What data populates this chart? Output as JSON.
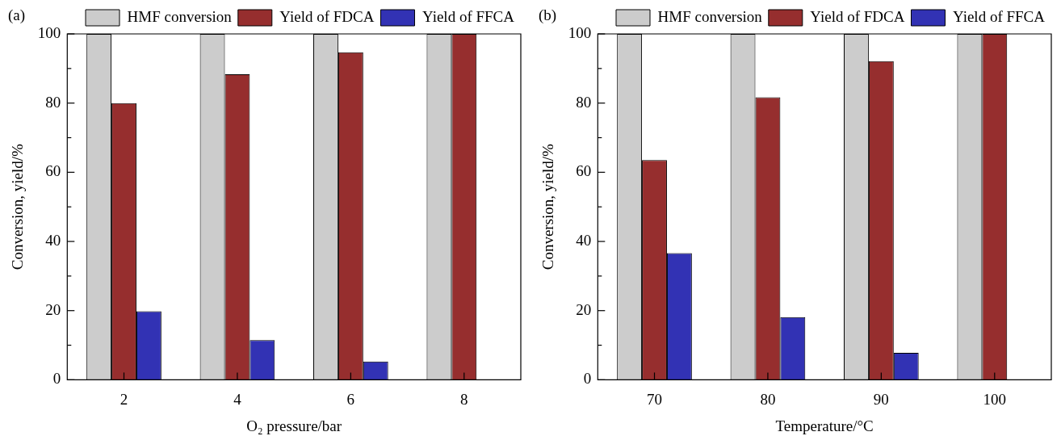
{
  "chart_data": [
    {
      "type": "bar",
      "title": "(a)",
      "xlabel": "O₂ pressure/bar",
      "ylabel": "Conversion, yield/%",
      "categories": [
        "2",
        "4",
        "6",
        "8"
      ],
      "series": [
        {
          "name": "HMF conversion",
          "color": "#cccccc",
          "values": [
            100,
            100,
            100,
            100
          ]
        },
        {
          "name": "Yield of FDCA",
          "color": "#962e2e",
          "values": [
            80,
            88.3,
            94.7,
            100
          ]
        },
        {
          "name": "Yield of FFCA",
          "color": "#3232b4",
          "values": [
            19.8,
            11.5,
            5.3,
            0
          ]
        }
      ],
      "ylim": [
        0,
        100
      ],
      "yticks": [
        0,
        {
          "value": 10,
          "label": null
        },
        20,
        {
          "value": 30,
          "label": null
        },
        40,
        {
          "value": 50,
          "label": null
        },
        60,
        {
          "value": 70,
          "label": null
        },
        80,
        {
          "value": 90,
          "label": null
        },
        100
      ],
      "legend": "top"
    },
    {
      "type": "bar",
      "title": "(b)",
      "xlabel": "Temperature/°C",
      "ylabel": "Conversion, yield/%",
      "categories": [
        "70",
        "80",
        "90",
        "100"
      ],
      "series": [
        {
          "name": "HMF conversion",
          "color": "#cccccc",
          "values": [
            100,
            100,
            100,
            100
          ]
        },
        {
          "name": "Yield of FDCA",
          "color": "#962e2e",
          "values": [
            63.5,
            81.7,
            92.1,
            100
          ]
        },
        {
          "name": "Yield of FFCA",
          "color": "#3232b4",
          "values": [
            36.6,
            18.1,
            7.8,
            0
          ]
        }
      ],
      "ylim": [
        0,
        100
      ],
      "yticks": [
        0,
        {
          "value": 10,
          "label": null
        },
        20,
        {
          "value": 30,
          "label": null
        },
        40,
        {
          "value": 50,
          "label": null
        },
        60,
        {
          "value": 70,
          "label": null
        },
        80,
        {
          "value": 90,
          "label": null
        },
        100
      ],
      "legend": "top"
    }
  ]
}
